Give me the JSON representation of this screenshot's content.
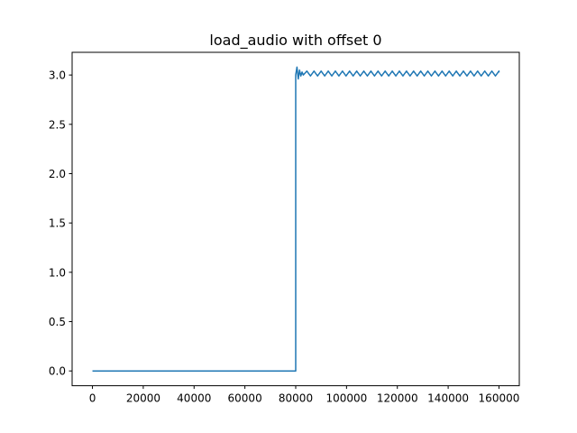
{
  "chart_data": {
    "type": "line",
    "title": "load_audio with offset 0",
    "xlabel": "",
    "ylabel": "",
    "xlim": [
      -8000,
      168000
    ],
    "ylim": [
      -0.15,
      3.23
    ],
    "x_ticks": [
      0,
      20000,
      40000,
      60000,
      80000,
      100000,
      120000,
      140000,
      160000
    ],
    "x_tick_labels": [
      "0",
      "20000",
      "40000",
      "60000",
      "80000",
      "100000",
      "120000",
      "140000",
      "160000"
    ],
    "y_ticks": [
      0.0,
      0.5,
      1.0,
      1.5,
      2.0,
      2.5,
      3.0
    ],
    "y_tick_labels": [
      "0.0",
      "0.5",
      "1.0",
      "1.5",
      "2.0",
      "2.5",
      "3.0"
    ],
    "grid": false,
    "series": [
      {
        "color": "#1f77b4",
        "x": [
          0,
          80000,
          80000,
          80500,
          81000,
          81500,
          82000,
          82500,
          83000,
          84000,
          160000
        ],
        "y": [
          0.0,
          0.0,
          3.0,
          3.08,
          2.96,
          3.05,
          2.99,
          3.03,
          3.0,
          3.02,
          3.02
        ],
        "ripple": {
          "from_x": 83000,
          "to_x": 160000,
          "center": 3.015,
          "amplitude": 0.025
        }
      }
    ]
  }
}
